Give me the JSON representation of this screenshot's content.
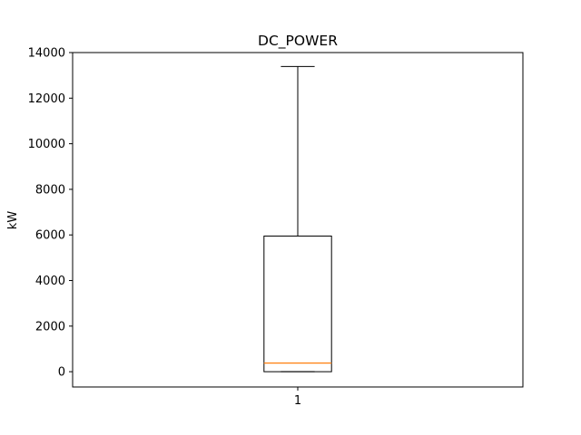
{
  "chart_data": {
    "type": "boxplot",
    "title": "DC_POWER",
    "xlabel": "",
    "ylabel": "kW",
    "categories": [
      "1"
    ],
    "boxes": [
      {
        "name": "1",
        "whisker_low": 0,
        "q1": 0,
        "median": 380,
        "q3": 5950,
        "whisker_high": 13390
      }
    ],
    "ylim": [
      -670,
      14000
    ],
    "yticks": [
      0,
      2000,
      4000,
      6000,
      8000,
      10000,
      12000,
      14000
    ],
    "xlim": [
      0.5,
      1.5
    ],
    "grid": false,
    "colors": {
      "box": "#000000",
      "median": "#ff7f0e",
      "whisker": "#000000",
      "axes": "#000000"
    }
  }
}
